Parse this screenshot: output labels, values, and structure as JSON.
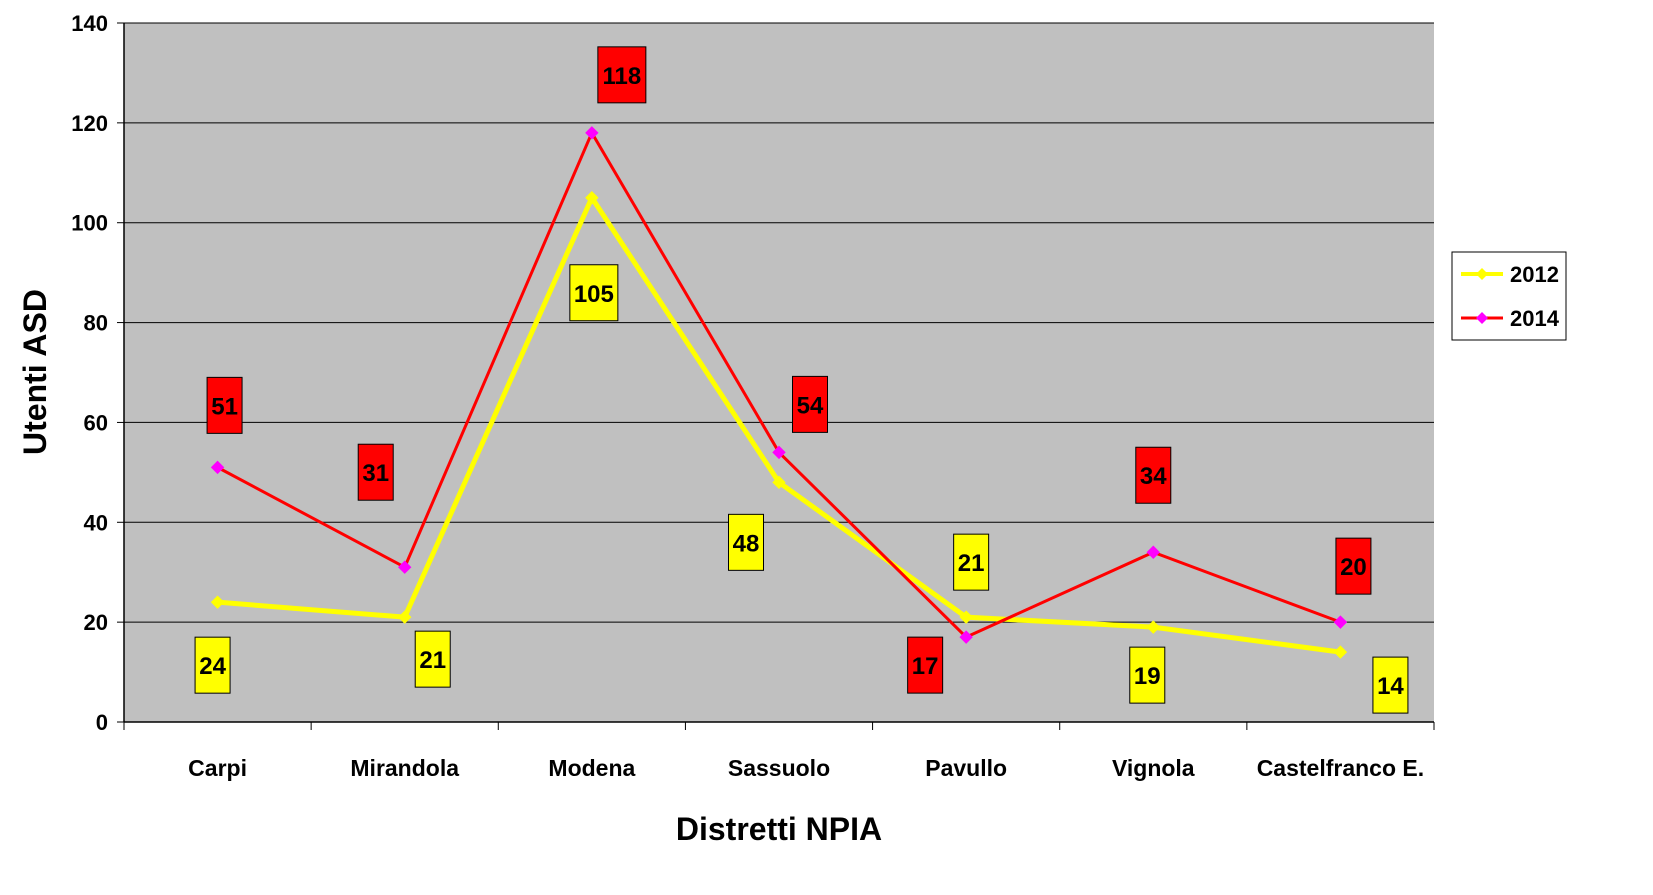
{
  "chart_data": {
    "type": "line",
    "title": "",
    "xlabel": "Distretti NPIA",
    "ylabel": "Utenti ASD",
    "categories": [
      "Carpi",
      "Mirandola",
      "Modena",
      "Sassuolo",
      "Pavullo",
      "Vignola",
      "Castelfranco E."
    ],
    "ylim": [
      0,
      140
    ],
    "yticks": [
      "0",
      "20",
      "40",
      "60",
      "80",
      "100",
      "120",
      "140"
    ],
    "grid": true,
    "legend_position": "right",
    "plot_background": "#c0c0c0",
    "series": [
      {
        "name": "2012",
        "color": "#ffff00",
        "label_fill": "#ffff00",
        "values": [
          24,
          21,
          105,
          48,
          21,
          19,
          14
        ],
        "labels": [
          "24",
          "21",
          "105",
          "48",
          "21",
          "19",
          "14"
        ]
      },
      {
        "name": "2014",
        "color": "#ff0000",
        "label_fill": "#ff0000",
        "values": [
          51,
          31,
          118,
          54,
          17,
          34,
          20
        ],
        "labels": [
          "51",
          "31",
          "118",
          "54",
          "17",
          "34",
          "20"
        ]
      }
    ]
  }
}
